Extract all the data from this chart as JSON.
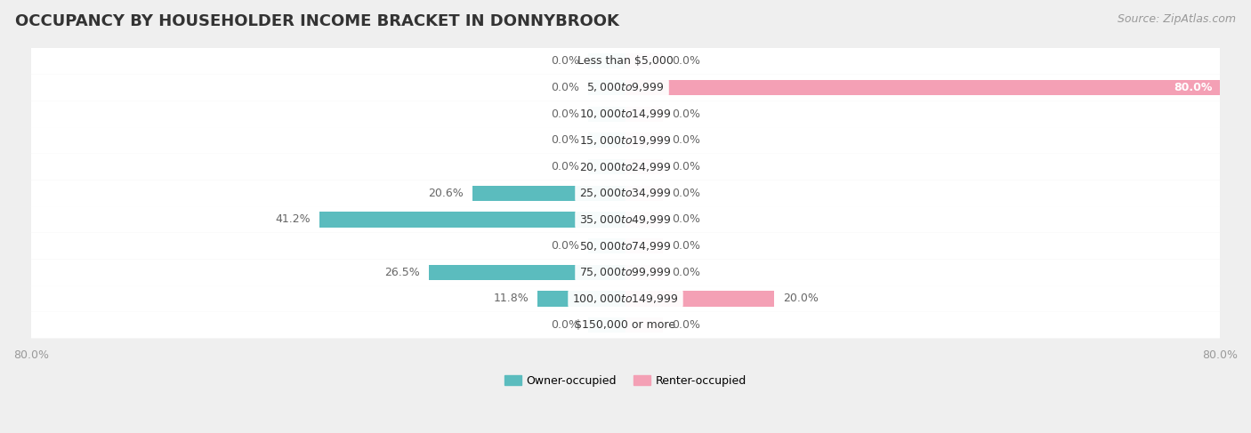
{
  "title": "OCCUPANCY BY HOUSEHOLDER INCOME BRACKET IN DONNYBROOK",
  "source": "Source: ZipAtlas.com",
  "categories": [
    "Less than $5,000",
    "$5,000 to $9,999",
    "$10,000 to $14,999",
    "$15,000 to $19,999",
    "$20,000 to $24,999",
    "$25,000 to $34,999",
    "$35,000 to $49,999",
    "$50,000 to $74,999",
    "$75,000 to $99,999",
    "$100,000 to $149,999",
    "$150,000 or more"
  ],
  "owner_values": [
    0.0,
    0.0,
    0.0,
    0.0,
    0.0,
    20.6,
    41.2,
    0.0,
    26.5,
    11.8,
    0.0
  ],
  "renter_values": [
    0.0,
    80.0,
    0.0,
    0.0,
    0.0,
    0.0,
    0.0,
    0.0,
    0.0,
    20.0,
    0.0
  ],
  "owner_color": "#5bbcbe",
  "renter_color": "#f4a0b5",
  "background_color": "#efefef",
  "row_bg_odd": "#f7f7f7",
  "row_bg_even": "#e8e8e8",
  "row_bg_color": "#f5f5f5",
  "title_fontsize": 13,
  "source_fontsize": 9,
  "label_fontsize": 9,
  "category_fontsize": 9,
  "axis_max": 80.0,
  "stub_size": 5.0,
  "legend_labels": [
    "Owner-occupied",
    "Renter-occupied"
  ]
}
